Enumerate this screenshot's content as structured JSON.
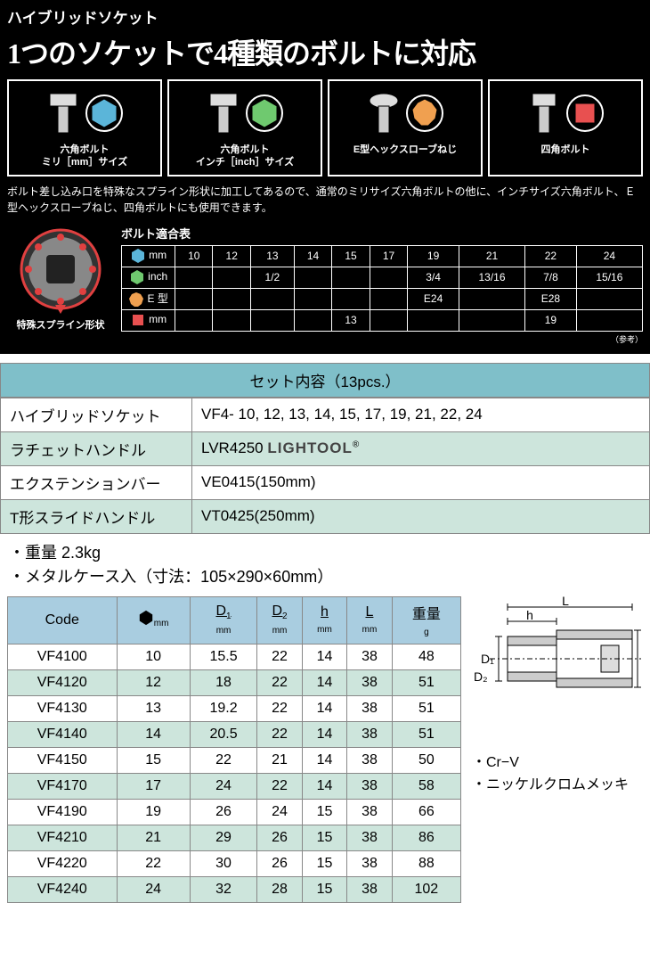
{
  "header": {
    "product_name": "ハイブリッドソケット",
    "headline": "1つのソケットで4種類のボルトに対応"
  },
  "bolt_types": [
    {
      "label_line1": "六角ボルト",
      "label_line2": "ミリ［mm］サイズ",
      "color": "#5bb5d9"
    },
    {
      "label_line1": "六角ボルト",
      "label_line2": "インチ［inch］サイズ",
      "color": "#6fc96f"
    },
    {
      "label_line1": "E型ヘックスローブねじ",
      "label_line2": "",
      "color": "#f0a050"
    },
    {
      "label_line1": "四角ボルト",
      "label_line2": "",
      "color": "#e85050"
    }
  ],
  "description": "ボルト差し込み口を特殊なスプライン形状に加工してあるので、通常のミリサイズ六角ボルトの他に、インチサイズ六角ボルト、Ｅ型ヘックスローブねじ、四角ボルトにも使用できます。",
  "gear_label": "特殊スプライン形状",
  "compat": {
    "title": "ボルト適合表",
    "legend_colors": {
      "mm": "#5bb5d9",
      "inch": "#6fc96f",
      "e": "#f0a050",
      "sq": "#e85050"
    },
    "legend_labels": {
      "mm": "mm",
      "inch": "inch",
      "e": "E 型",
      "sq": "mm"
    },
    "cols": [
      "10",
      "12",
      "13",
      "14",
      "15",
      "17",
      "19",
      "21",
      "22",
      "24"
    ],
    "rows": {
      "mm": [
        "10",
        "12",
        "13",
        "14",
        "15",
        "17",
        "19",
        "21",
        "22",
        "24"
      ],
      "inch": [
        "",
        "",
        "1/2",
        "",
        "",
        "",
        "3/4",
        "13/16",
        "7/8",
        "15/16"
      ],
      "e": [
        "",
        "",
        "",
        "",
        "",
        "",
        "E24",
        "",
        "E28",
        ""
      ],
      "sq": [
        "",
        "",
        "",
        "",
        "13",
        "",
        "",
        "",
        "19",
        ""
      ]
    },
    "ref": "（参考）"
  },
  "set": {
    "header": "セット内容（13pcs.）",
    "rows": [
      {
        "label": "ハイブリッドソケット",
        "value": "VF4- 10,  12,  13,  14,  15,  17,  19,  21,  22,  24",
        "alt": false
      },
      {
        "label": "ラチェットハンドル",
        "value": "LVR4250",
        "brand": "LIGHTOOL",
        "brand_reg": "®",
        "alt": true
      },
      {
        "label": "エクステンションバー",
        "value": "VE0415(150mm)",
        "alt": false
      },
      {
        "label": "T形スライドハンドル",
        "value": "VT0425(250mm)",
        "alt": true
      }
    ]
  },
  "notes": {
    "weight": "・重量  2.3kg",
    "case": "・メタルケース入（寸法：105×290×60mm）"
  },
  "spec": {
    "headers": {
      "code": "Code",
      "hex_mm": "mm",
      "d1": "D",
      "d1_sub": "1",
      "d1_unit": "mm",
      "d2": "D",
      "d2_sub": "2",
      "d2_unit": "mm",
      "h": "h",
      "h_unit": "mm",
      "l": "L",
      "l_unit": "mm",
      "weight": "重量",
      "weight_unit": "g"
    },
    "rows": [
      {
        "code": "VF4100",
        "mm": "10",
        "d1": "15.5",
        "d2": "22",
        "h": "14",
        "l": "38",
        "w": "48",
        "alt": false
      },
      {
        "code": "VF4120",
        "mm": "12",
        "d1": "18",
        "d2": "22",
        "h": "14",
        "l": "38",
        "w": "51",
        "alt": true
      },
      {
        "code": "VF4130",
        "mm": "13",
        "d1": "19.2",
        "d2": "22",
        "h": "14",
        "l": "38",
        "w": "51",
        "alt": false
      },
      {
        "code": "VF4140",
        "mm": "14",
        "d1": "20.5",
        "d2": "22",
        "h": "14",
        "l": "38",
        "w": "51",
        "alt": true
      },
      {
        "code": "VF4150",
        "mm": "15",
        "d1": "22",
        "d2": "21",
        "h": "14",
        "l": "38",
        "w": "50",
        "alt": false
      },
      {
        "code": "VF4170",
        "mm": "17",
        "d1": "24",
        "d2": "22",
        "h": "14",
        "l": "38",
        "w": "58",
        "alt": true
      },
      {
        "code": "VF4190",
        "mm": "19",
        "d1": "26",
        "d2": "24",
        "h": "15",
        "l": "38",
        "w": "66",
        "alt": false
      },
      {
        "code": "VF4210",
        "mm": "21",
        "d1": "29",
        "d2": "26",
        "h": "15",
        "l": "38",
        "w": "86",
        "alt": true
      },
      {
        "code": "VF4220",
        "mm": "22",
        "d1": "30",
        "d2": "26",
        "h": "15",
        "l": "38",
        "w": "88",
        "alt": false
      },
      {
        "code": "VF4240",
        "mm": "24",
        "d1": "32",
        "d2": "28",
        "h": "15",
        "l": "38",
        "w": "102",
        "alt": true
      }
    ]
  },
  "diagram_notes": {
    "material": "・Cr−V",
    "plating": "・ニッケルクロムメッキ",
    "L": "L",
    "h": "h",
    "D1": "D₁",
    "D2": "D₂"
  }
}
